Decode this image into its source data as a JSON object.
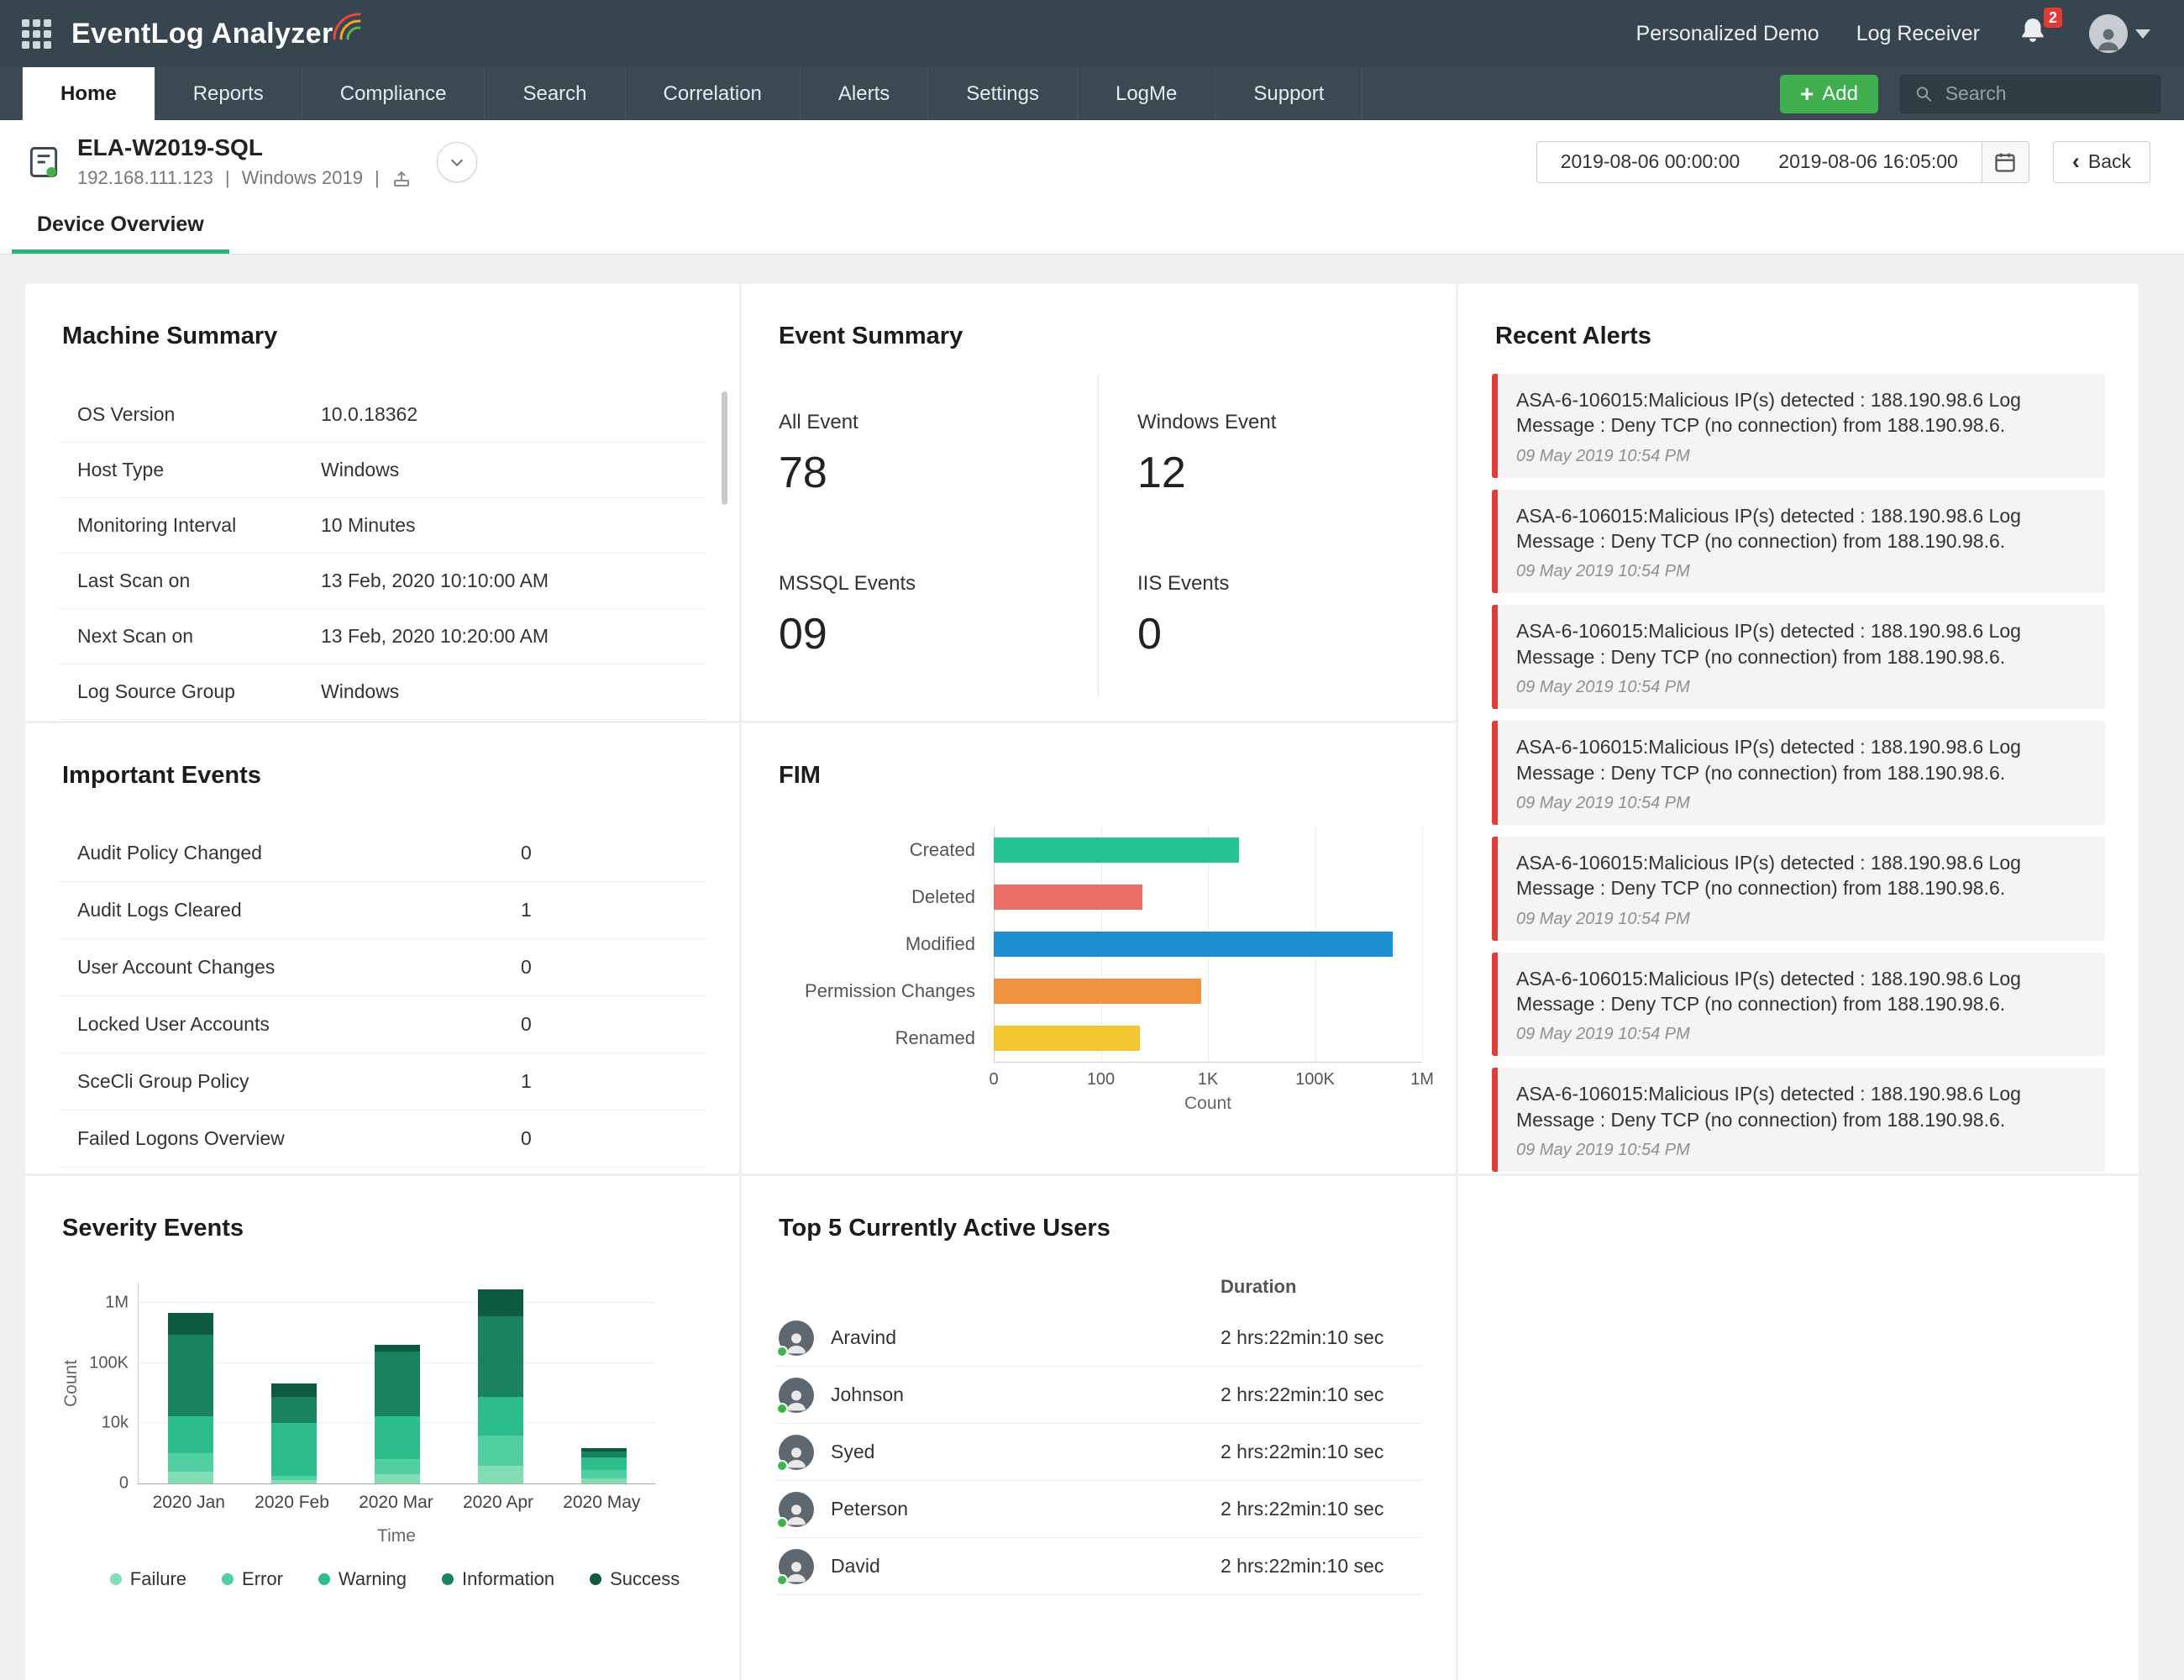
{
  "header": {
    "app_title": "EventLog Analyzer",
    "personalized_demo": "Personalized Demo",
    "log_receiver": "Log Receiver",
    "notification_count": "2"
  },
  "icons": {
    "add_plus": "+",
    "back_chevron": "‹"
  },
  "nav": {
    "tabs": [
      {
        "label": "Home",
        "active": true
      },
      {
        "label": "Reports",
        "active": false
      },
      {
        "label": "Compliance",
        "active": false
      },
      {
        "label": "Search",
        "active": false
      },
      {
        "label": "Correlation",
        "active": false
      },
      {
        "label": "Alerts",
        "active": false
      },
      {
        "label": "Settings",
        "active": false
      },
      {
        "label": "LogMe",
        "active": false
      },
      {
        "label": "Support",
        "active": false
      }
    ],
    "add_button": "Add",
    "search_placeholder": "Search"
  },
  "device": {
    "name": "ELA-W2019-SQL",
    "ip": "192.168.111.123",
    "separator": "|",
    "os": "Windows 2019",
    "date_from": "2019-08-06 00:00:00",
    "date_to": "2019-08-06 16:05:00",
    "back_label": "Back",
    "tab": "Device Overview"
  },
  "machine_summary": {
    "title": "Machine Summary",
    "rows": [
      {
        "label": "OS Version",
        "value": "10.0.18362"
      },
      {
        "label": "Host Type",
        "value": "Windows"
      },
      {
        "label": "Monitoring Interval",
        "value": "10 Minutes"
      },
      {
        "label": "Last Scan on",
        "value": "13 Feb, 2020  10:10:00 AM"
      },
      {
        "label": "Next Scan on",
        "value": "13 Feb, 2020  10:20:00 AM"
      },
      {
        "label": "Log Source Group",
        "value": "Windows"
      }
    ]
  },
  "event_summary": {
    "title": "Event Summary",
    "items": [
      {
        "label": "All Event",
        "value": "78"
      },
      {
        "label": "Windows Event",
        "value": "12"
      },
      {
        "label": "MSSQL Events",
        "value": "09"
      },
      {
        "label": "IIS Events",
        "value": "0"
      }
    ]
  },
  "recent_alerts": {
    "title": "Recent Alerts",
    "items": [
      {
        "message": "ASA-6-106015:Malicious IP(s) detected : 188.190.98.6 Log Message : Deny TCP (no connection) from 188.190.98.6.",
        "time": "09 May 2019 10:54 PM"
      },
      {
        "message": "ASA-6-106015:Malicious IP(s) detected : 188.190.98.6 Log Message : Deny TCP (no connection) from 188.190.98.6.",
        "time": "09 May 2019 10:54 PM"
      },
      {
        "message": "ASA-6-106015:Malicious IP(s) detected : 188.190.98.6 Log Message : Deny TCP (no connection) from 188.190.98.6.",
        "time": "09 May 2019 10:54 PM"
      },
      {
        "message": "ASA-6-106015:Malicious IP(s) detected : 188.190.98.6 Log Message : Deny TCP (no connection) from 188.190.98.6.",
        "time": "09 May 2019 10:54 PM"
      },
      {
        "message": "ASA-6-106015:Malicious IP(s) detected : 188.190.98.6 Log Message : Deny TCP (no connection) from 188.190.98.6.",
        "time": "09 May 2019 10:54 PM"
      },
      {
        "message": "ASA-6-106015:Malicious IP(s) detected : 188.190.98.6 Log Message : Deny TCP (no connection) from 188.190.98.6.",
        "time": "09 May 2019 10:54 PM"
      },
      {
        "message": "ASA-6-106015:Malicious IP(s) detected : 188.190.98.6 Log Message : Deny TCP (no connection) from 188.190.98.6.",
        "time": "09 May 2019 10:54 PM"
      }
    ]
  },
  "important_events": {
    "title": "Important Events",
    "rows": [
      {
        "label": "Audit Policy Changed",
        "value": "0"
      },
      {
        "label": "Audit Logs Cleared",
        "value": "1"
      },
      {
        "label": "User Account Changes",
        "value": "0"
      },
      {
        "label": "Locked User Accounts",
        "value": "0"
      },
      {
        "label": "SceCli Group Policy",
        "value": "1"
      },
      {
        "label": "Failed Logons Overview",
        "value": "0"
      }
    ]
  },
  "active_users": {
    "title": "Top 5 Currently Active Users",
    "duration_header": "Duration",
    "rows": [
      {
        "name": "Aravind",
        "duration": "2 hrs:22min:10 sec"
      },
      {
        "name": "Johnson",
        "duration": "2 hrs:22min:10 sec"
      },
      {
        "name": "Syed",
        "duration": "2 hrs:22min:10 sec"
      },
      {
        "name": "Peterson",
        "duration": "2 hrs:22min:10 sec"
      },
      {
        "name": "David",
        "duration": "2 hrs:22min:10 sec"
      }
    ]
  },
  "chart_data": [
    {
      "id": "fim",
      "type": "bar",
      "orientation": "horizontal",
      "title": "FIM",
      "categories": [
        "Created",
        "Deleted",
        "Modified",
        "Permission Changes",
        "Renamed"
      ],
      "values": [
        30000,
        450,
        750000,
        940,
        430
      ],
      "colors": [
        "#25c392",
        "#ea6d68",
        "#1d8fd1",
        "#ef9340",
        "#f3c731"
      ],
      "xlabel": "Count",
      "x_ticks": [
        "0",
        "100",
        "1K",
        "100K",
        "1M"
      ],
      "x_tick_values": [
        0,
        100,
        1000,
        100000,
        1000000
      ],
      "scale": "piecewise",
      "grid": true,
      "legend": "none"
    },
    {
      "id": "severity",
      "type": "stacked-bar",
      "title": "Severity Events",
      "categories": [
        "2020 Jan",
        "2020 Feb",
        "2020 Mar",
        "2020 Apr",
        "2020 May"
      ],
      "series": [
        {
          "name": "Failure",
          "color": "#82dcb4",
          "values": [
            2000,
            500,
            1500,
            3000,
            800
          ]
        },
        {
          "name": "Error",
          "color": "#52cfa0",
          "values": [
            3000,
            800,
            2500,
            5000,
            1500
          ]
        },
        {
          "name": "Warning",
          "color": "#2cbd8a",
          "values": [
            15000,
            8700,
            16000,
            42000,
            2000
          ]
        },
        {
          "name": "Information",
          "color": "#19835f",
          "values": [
            500000,
            40000,
            250000,
            750000,
            1000
          ]
        },
        {
          "name": "Success",
          "color": "#0c5b40",
          "values": [
            330000,
            20000,
            100000,
            400000,
            500
          ]
        }
      ],
      "totals": [
        850000,
        70000,
        370000,
        1200000,
        5800
      ],
      "ylabel": "Count",
      "xlabel": "Time",
      "y_ticks": [
        "0",
        "10k",
        "100K",
        "1M"
      ],
      "y_tick_values": [
        0,
        10000,
        100000,
        1000000
      ],
      "scale": "piecewise",
      "legend": "bottom"
    }
  ]
}
